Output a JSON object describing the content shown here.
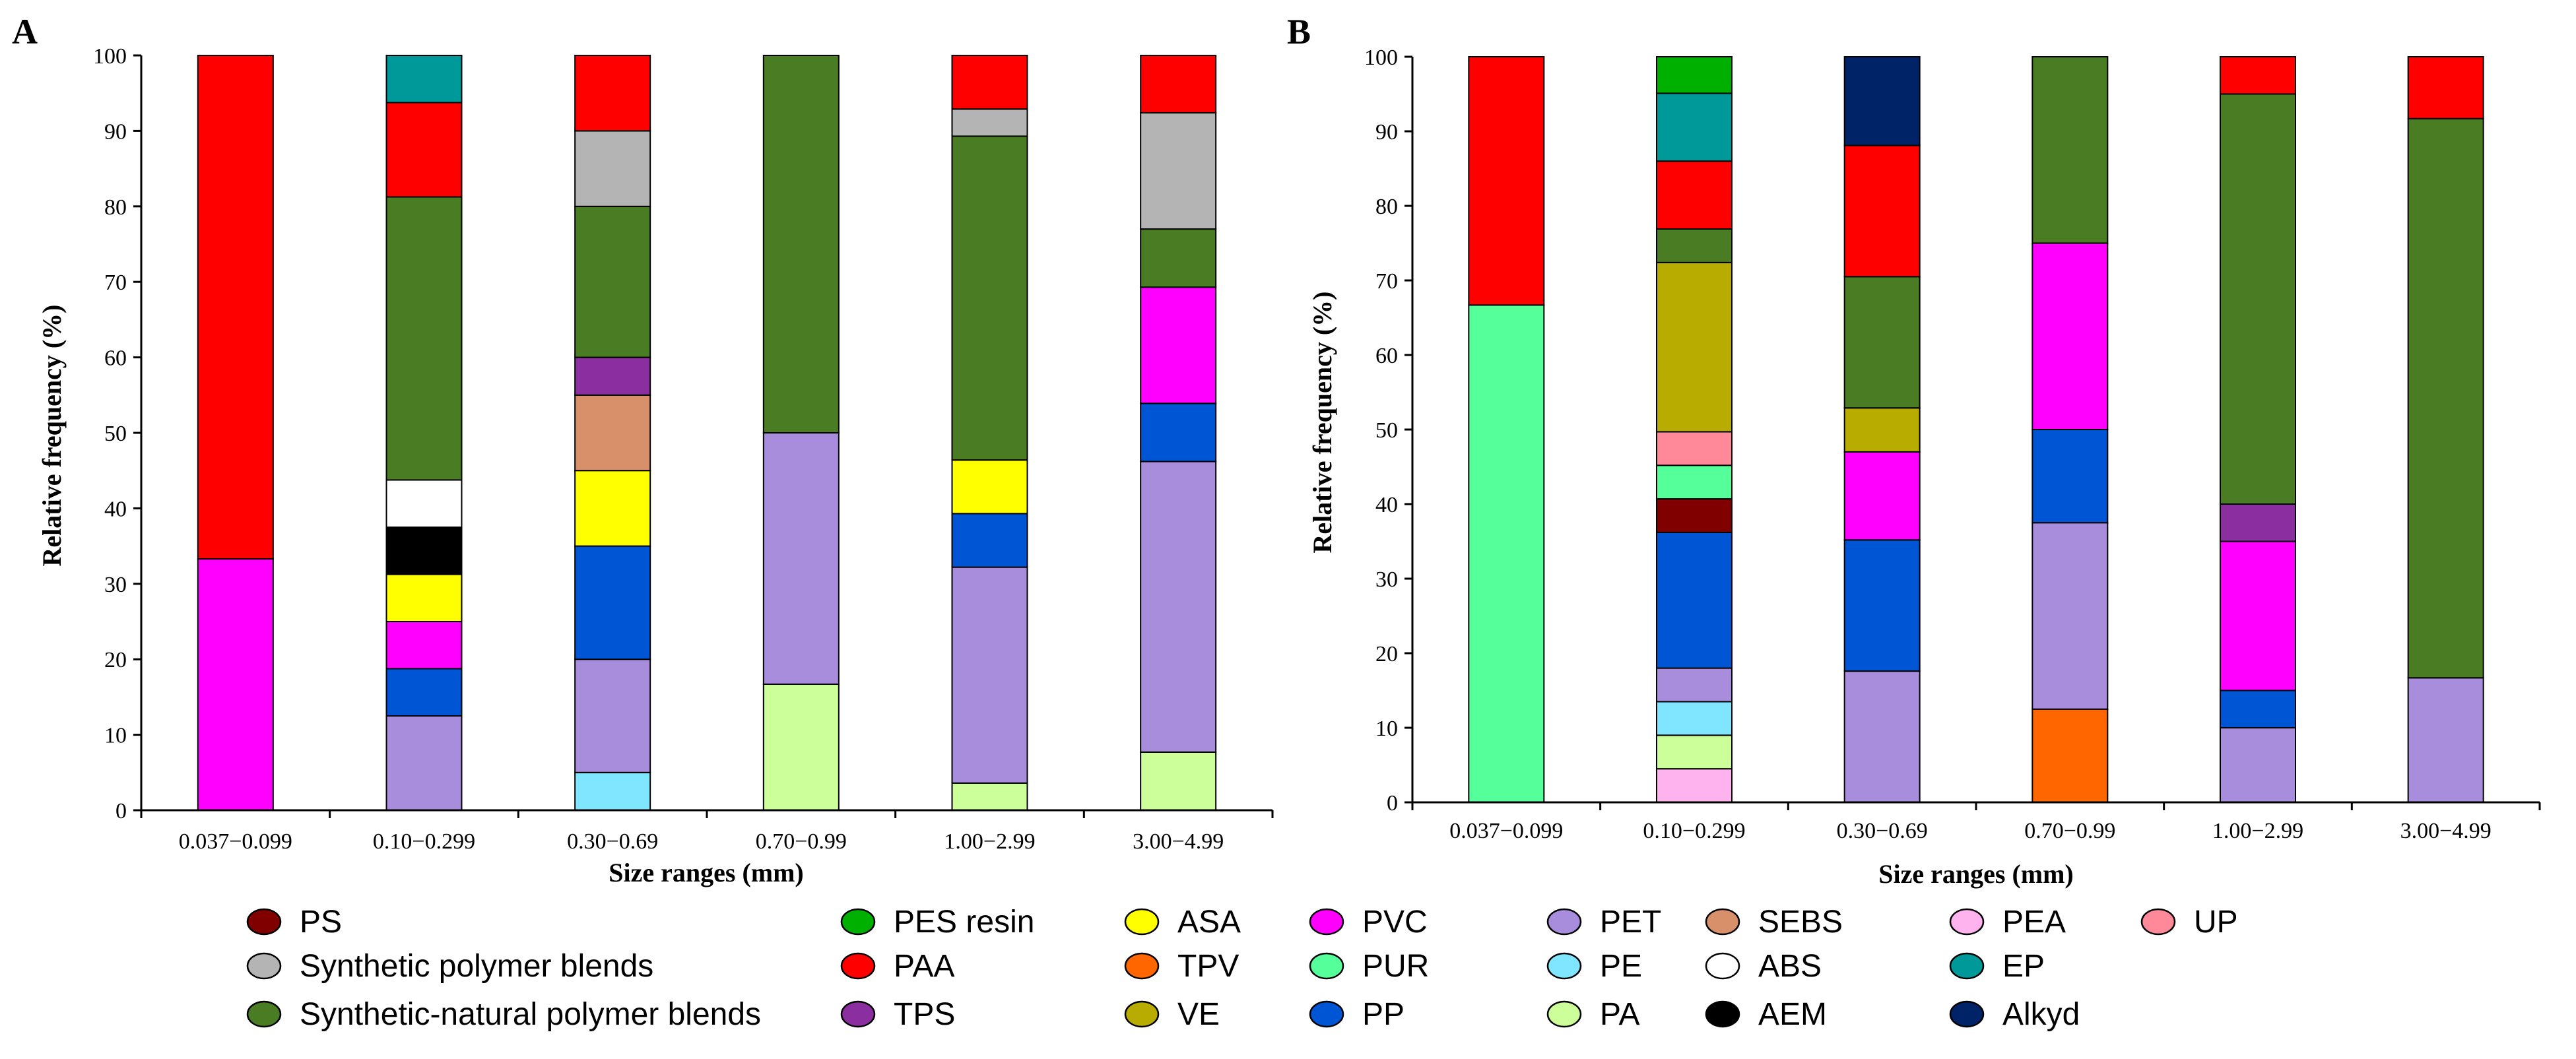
{
  "colors": {
    "PS": "#800000",
    "Synthetic polymer blends": "#b4b4b4",
    "Synthetic-natural polymer blends": "#4a7c23",
    "PES resin": "#00b000",
    "PAA": "#ff0000",
    "TPS": "#8b2fa0",
    "ASA": "#ffff00",
    "TPV": "#ff6600",
    "VE": "#b8ac00",
    "PVC": "#ff00ff",
    "PUR": "#55ff99",
    "PP": "#0055d4",
    "PET": "#a98ddd",
    "PE": "#80e6ff",
    "PA": "#ccff99",
    "SEBS": "#d8906a",
    "ABS": "#ffffff",
    "AEM": "#000000",
    "PEA": "#ffb3ee",
    "EP": "#009999",
    "Alkyd": "#002266",
    "UP": "#ff8899"
  },
  "legend": [
    "PS",
    "Synthetic polymer blends",
    "Synthetic-natural polymer blends",
    "PES resin",
    "PAA",
    "TPS",
    "ASA",
    "TPV",
    "VE",
    "PVC",
    "PUR",
    "PP",
    "PET",
    "PE",
    "PA",
    "SEBS",
    "ABS",
    "AEM",
    "PEA",
    "EP",
    "Alkyd",
    "UP"
  ],
  "chart_data": [
    {
      "panel": "A",
      "type": "bar",
      "stacked": true,
      "xlabel": "Size ranges (mm)",
      "ylabel": "Relative frequency (%)",
      "ylim": [
        0,
        100
      ],
      "yticks": [
        "0",
        "10",
        "20",
        "30",
        "40",
        "50",
        "60",
        "70",
        "80",
        "90",
        "100"
      ],
      "categories": [
        "0.037−0.099",
        "0.10−0.299",
        "0.30−0.69",
        "0.70−0.99",
        "1.00−2.99",
        "3.00−4.99"
      ],
      "stacks": [
        [
          {
            "polymer": "PVC",
            "value": 33.3
          },
          {
            "polymer": "PAA",
            "value": 66.7
          }
        ],
        [
          {
            "polymer": "PET",
            "value": 12.5
          },
          {
            "polymer": "PP",
            "value": 6.25
          },
          {
            "polymer": "PVC",
            "value": 6.25
          },
          {
            "polymer": "ASA",
            "value": 6.25
          },
          {
            "polymer": "AEM",
            "value": 6.25
          },
          {
            "polymer": "ABS",
            "value": 6.25
          },
          {
            "polymer": "Synthetic-natural polymer blends",
            "value": 37.5
          },
          {
            "polymer": "PAA",
            "value": 12.5
          },
          {
            "polymer": "EP",
            "value": 6.25
          }
        ],
        [
          {
            "polymer": "PE",
            "value": 5
          },
          {
            "polymer": "PET",
            "value": 15
          },
          {
            "polymer": "PP",
            "value": 15
          },
          {
            "polymer": "ASA",
            "value": 10
          },
          {
            "polymer": "SEBS",
            "value": 10
          },
          {
            "polymer": "TPS",
            "value": 5
          },
          {
            "polymer": "Synthetic-natural polymer blends",
            "value": 20
          },
          {
            "polymer": "Synthetic polymer blends",
            "value": 10
          },
          {
            "polymer": "PAA",
            "value": 10
          }
        ],
        [
          {
            "polymer": "PA",
            "value": 16.7
          },
          {
            "polymer": "PET",
            "value": 33.3
          },
          {
            "polymer": "Synthetic-natural polymer blends",
            "value": 50
          }
        ],
        [
          {
            "polymer": "PA",
            "value": 3.6
          },
          {
            "polymer": "PET",
            "value": 28.6
          },
          {
            "polymer": "PP",
            "value": 7.1
          },
          {
            "polymer": "ASA",
            "value": 7.1
          },
          {
            "polymer": "Synthetic-natural polymer blends",
            "value": 42.9
          },
          {
            "polymer": "Synthetic polymer blends",
            "value": 3.6
          },
          {
            "polymer": "PAA",
            "value": 7.1
          }
        ],
        [
          {
            "polymer": "PA",
            "value": 7.7
          },
          {
            "polymer": "PET",
            "value": 38.5
          },
          {
            "polymer": "PP",
            "value": 7.7
          },
          {
            "polymer": "PVC",
            "value": 15.4
          },
          {
            "polymer": "Synthetic-natural polymer blends",
            "value": 7.7
          },
          {
            "polymer": "Synthetic polymer blends",
            "value": 15.4
          },
          {
            "polymer": "PAA",
            "value": 7.6
          }
        ]
      ]
    },
    {
      "panel": "B",
      "type": "bar",
      "stacked": true,
      "xlabel": "Size ranges (mm)",
      "ylabel": "Relative frequency (%)",
      "ylim": [
        0,
        100
      ],
      "yticks": [
        "0",
        "10",
        "20",
        "30",
        "40",
        "50",
        "60",
        "70",
        "80",
        "90",
        "100"
      ],
      "categories": [
        "0.037−0.099",
        "0.10−0.299",
        "0.30−0.69",
        "0.70−0.99",
        "1.00−2.99",
        "3.00−4.99"
      ],
      "stacks": [
        [
          {
            "polymer": "PUR",
            "value": 66.7
          },
          {
            "polymer": "PAA",
            "value": 33.3
          }
        ],
        [
          {
            "polymer": "PEA",
            "value": 4.5
          },
          {
            "polymer": "PA",
            "value": 4.5
          },
          {
            "polymer": "PE",
            "value": 4.5
          },
          {
            "polymer": "PET",
            "value": 4.5
          },
          {
            "polymer": "PP",
            "value": 18.2
          },
          {
            "polymer": "PS",
            "value": 4.5
          },
          {
            "polymer": "PUR",
            "value": 4.5
          },
          {
            "polymer": "UP",
            "value": 4.5
          },
          {
            "polymer": "VE",
            "value": 22.7
          },
          {
            "polymer": "Synthetic-natural polymer blends",
            "value": 4.5
          },
          {
            "polymer": "PAA",
            "value": 9.1
          },
          {
            "polymer": "EP",
            "value": 9.1
          },
          {
            "polymer": "PES resin",
            "value": 4.9
          }
        ],
        [
          {
            "polymer": "PET",
            "value": 17.6
          },
          {
            "polymer": "PP",
            "value": 17.6
          },
          {
            "polymer": "PVC",
            "value": 11.8
          },
          {
            "polymer": "VE",
            "value": 5.9
          },
          {
            "polymer": "Synthetic-natural polymer blends",
            "value": 17.6
          },
          {
            "polymer": "PAA",
            "value": 17.6
          },
          {
            "polymer": "Alkyd",
            "value": 11.9
          }
        ],
        [
          {
            "polymer": "TPV",
            "value": 12.5
          },
          {
            "polymer": "PET",
            "value": 25
          },
          {
            "polymer": "PP",
            "value": 12.5
          },
          {
            "polymer": "PVC",
            "value": 25
          },
          {
            "polymer": "Synthetic-natural polymer blends",
            "value": 25
          }
        ],
        [
          {
            "polymer": "PET",
            "value": 10
          },
          {
            "polymer": "PP",
            "value": 5
          },
          {
            "polymer": "PVC",
            "value": 20
          },
          {
            "polymer": "TPS",
            "value": 5
          },
          {
            "polymer": "Synthetic-natural polymer blends",
            "value": 55
          },
          {
            "polymer": "PAA",
            "value": 5
          }
        ],
        [
          {
            "polymer": "PET",
            "value": 16.7
          },
          {
            "polymer": "Synthetic-natural polymer blends",
            "value": 75
          },
          {
            "polymer": "PAA",
            "value": 8.3
          }
        ]
      ]
    }
  ]
}
